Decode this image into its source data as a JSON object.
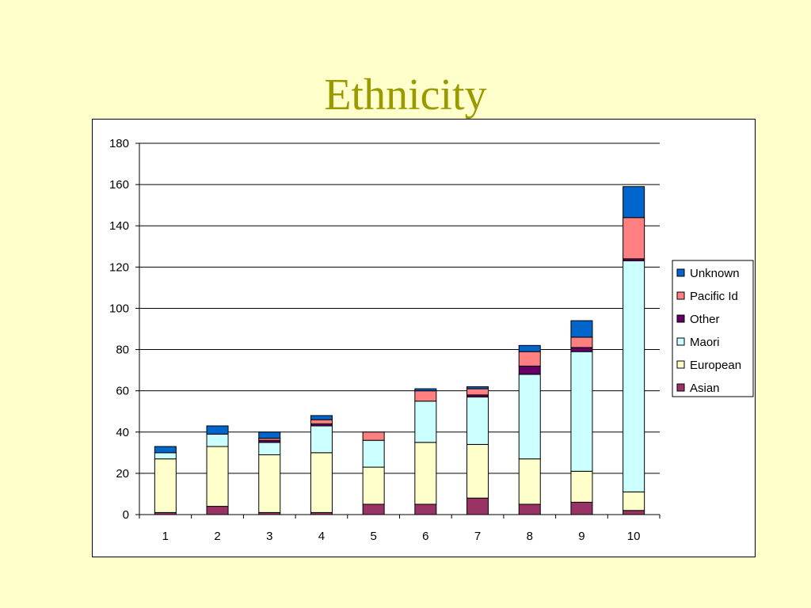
{
  "slide": {
    "title": "Ethnicity"
  },
  "chart_data": {
    "type": "bar",
    "stacked": true,
    "categories": [
      "1",
      "2",
      "3",
      "4",
      "5",
      "6",
      "7",
      "8",
      "9",
      "10"
    ],
    "ylim": [
      0,
      180
    ],
    "yticks": [
      0,
      20,
      40,
      60,
      80,
      100,
      120,
      140,
      160,
      180
    ],
    "grid": true,
    "legend_position": "right",
    "title": "",
    "xlabel": "",
    "ylabel": "",
    "series": [
      {
        "name": "Asian",
        "color": "#993366",
        "values": [
          1,
          4,
          1,
          1,
          5,
          5,
          8,
          5,
          6,
          2
        ]
      },
      {
        "name": "European",
        "color": "#FFFFCC",
        "values": [
          26,
          29,
          28,
          29,
          18,
          30,
          26,
          22,
          15,
          9
        ]
      },
      {
        "name": "Maori",
        "color": "#CCFFFF",
        "values": [
          3,
          6,
          6,
          13,
          13,
          20,
          23,
          41,
          58,
          112
        ]
      },
      {
        "name": "Other",
        "color": "#660066",
        "values": [
          0,
          0,
          1,
          1,
          0,
          0,
          1,
          4,
          2,
          1
        ]
      },
      {
        "name": "Pacific Id",
        "color": "#FF8080",
        "values": [
          0,
          0,
          1,
          2,
          4,
          5,
          3,
          7,
          5,
          20
        ]
      },
      {
        "name": "Unknown",
        "color": "#0066CC",
        "values": [
          3,
          4,
          3,
          2,
          0,
          1,
          1,
          3,
          8,
          15
        ]
      }
    ]
  }
}
